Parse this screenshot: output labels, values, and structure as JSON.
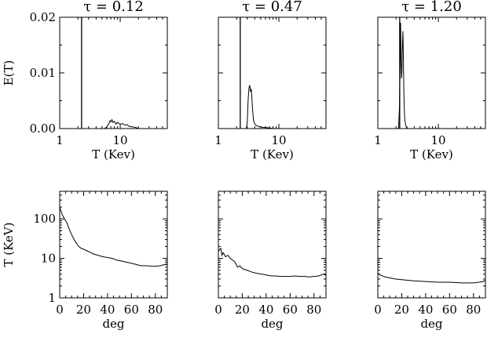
{
  "chart_data": [
    {
      "type": "line",
      "title": "τ = 0.12",
      "xlabel": "T (Kev)",
      "ylabel": "E(T)",
      "xscale": "log",
      "xlim": [
        1,
        60
      ],
      "ylim": [
        0,
        0.02
      ],
      "xticks": [
        1,
        10
      ],
      "xtick_labels": [
        "1",
        "10"
      ],
      "yticks": [
        0,
        0.01,
        0.02
      ],
      "ytick_labels": [
        "0.00",
        "0.01",
        "0.02"
      ],
      "vline": 2.3,
      "series": [
        {
          "x": [
            1,
            5.5,
            6.0,
            6.5,
            6.8,
            7.0,
            7.3,
            7.6,
            8.0,
            8.5,
            9.0,
            10,
            11,
            12,
            13,
            14,
            16,
            18,
            20,
            60
          ],
          "y": [
            0,
            0,
            0.0003,
            0.0009,
            0.0014,
            0.0012,
            0.0016,
            0.0011,
            0.0013,
            0.0008,
            0.0011,
            0.0008,
            0.0009,
            0.0006,
            0.0007,
            0.0004,
            0.0003,
            0.0002,
            0,
            0
          ]
        }
      ]
    },
    {
      "type": "line",
      "title": "τ = 0.47",
      "xlabel": "T (Kev)",
      "ylabel": "",
      "xscale": "log",
      "xlim": [
        1,
        60
      ],
      "ylim": [
        0,
        0.02
      ],
      "xticks": [
        1,
        10
      ],
      "xtick_labels": [
        "1",
        "10"
      ],
      "yticks": [
        0,
        0.01,
        0.02
      ],
      "ytick_labels": [
        "",
        "",
        ""
      ],
      "vline": 2.3,
      "series": [
        {
          "x": [
            1,
            2.9,
            3.0,
            3.1,
            3.2,
            3.3,
            3.4,
            3.5,
            3.6,
            3.7,
            3.8,
            4.0,
            4.3,
            4.6,
            5.0,
            5.5,
            6.0,
            7.0,
            8.0,
            60
          ],
          "y": [
            0,
            0,
            0.001,
            0.005,
            0.0073,
            0.0078,
            0.0066,
            0.0071,
            0.005,
            0.003,
            0.0015,
            0.0008,
            0.0005,
            0.0004,
            0.0003,
            0.0002,
            0.0002,
            0.0001,
            0,
            0
          ]
        }
      ]
    },
    {
      "type": "line",
      "title": "τ = 1.20",
      "xlabel": "T (Kev)",
      "ylabel": "",
      "xscale": "log",
      "xlim": [
        1,
        60
      ],
      "ylim": [
        0,
        0.02
      ],
      "xticks": [
        1,
        10
      ],
      "xtick_labels": [
        "1",
        "10"
      ],
      "yticks": [
        0,
        0.01,
        0.02
      ],
      "ytick_labels": [
        "",
        "",
        ""
      ],
      "vline": 2.3,
      "series": [
        {
          "x": [
            1,
            2.2,
            2.28,
            2.34,
            2.38,
            2.42,
            2.46,
            2.5,
            2.55,
            2.6,
            2.65,
            2.7,
            2.75,
            2.8,
            2.9,
            3.0,
            3.2,
            60
          ],
          "y": [
            0,
            0,
            0.004,
            0.012,
            0.019,
            0.013,
            0.009,
            0.01,
            0.015,
            0.0175,
            0.012,
            0.006,
            0.003,
            0.0015,
            0.0005,
            0.0002,
            0,
            0
          ]
        }
      ]
    },
    {
      "type": "line",
      "title": "",
      "xlabel": "deg",
      "ylabel": "T (KeV)",
      "yscale": "log",
      "xlim": [
        0,
        90
      ],
      "ylim": [
        1,
        500
      ],
      "xticks": [
        0,
        20,
        40,
        60,
        80
      ],
      "xtick_labels": [
        "0",
        "20",
        "40",
        "60",
        "80"
      ],
      "yticks": [
        1,
        10,
        100
      ],
      "ytick_labels": [
        "1",
        "10",
        "100"
      ],
      "series": [
        {
          "x": [
            0,
            2,
            4,
            6,
            8,
            10,
            12,
            14,
            16,
            18,
            20,
            24,
            28,
            32,
            36,
            40,
            44,
            48,
            52,
            56,
            60,
            64,
            68,
            72,
            76,
            80,
            84,
            88,
            90
          ],
          "y": [
            200,
            130,
            100,
            80,
            55,
            40,
            30,
            24,
            20,
            18,
            17,
            15,
            13,
            12,
            11,
            10.5,
            10,
            9,
            8.5,
            8,
            7.5,
            7,
            6.5,
            6.5,
            6.4,
            6.3,
            6.5,
            7,
            7.2
          ]
        }
      ]
    },
    {
      "type": "line",
      "title": "",
      "xlabel": "deg",
      "ylabel": "",
      "yscale": "log",
      "xlim": [
        0,
        90
      ],
      "ylim": [
        1,
        500
      ],
      "xticks": [
        0,
        20,
        40,
        60,
        80
      ],
      "xtick_labels": [
        "0",
        "20",
        "40",
        "60",
        "80"
      ],
      "yticks": [
        1,
        10,
        100
      ],
      "ytick_labels": [
        "",
        "",
        ""
      ],
      "series": [
        {
          "x": [
            0,
            2,
            3,
            4,
            6,
            8,
            10,
            12,
            14,
            16,
            18,
            20,
            24,
            28,
            32,
            36,
            40,
            44,
            48,
            52,
            56,
            60,
            64,
            68,
            72,
            76,
            80,
            84,
            88,
            90
          ],
          "y": [
            15,
            18,
            12,
            14,
            11,
            12,
            10,
            9,
            8,
            6,
            6.5,
            5.5,
            5,
            4.5,
            4.2,
            4,
            3.8,
            3.6,
            3.6,
            3.5,
            3.5,
            3.5,
            3.6,
            3.5,
            3.5,
            3.4,
            3.5,
            3.6,
            4,
            3.7
          ]
        }
      ]
    },
    {
      "type": "line",
      "title": "",
      "xlabel": "deg",
      "ylabel": "",
      "yscale": "log",
      "xlim": [
        0,
        90
      ],
      "ylim": [
        1,
        500
      ],
      "xticks": [
        0,
        20,
        40,
        60,
        80
      ],
      "xtick_labels": [
        "0",
        "20",
        "40",
        "60",
        "80"
      ],
      "yticks": [
        1,
        10,
        100
      ],
      "ytick_labels": [
        "",
        "",
        ""
      ],
      "series": [
        {
          "x": [
            0,
            2,
            4,
            6,
            10,
            15,
            20,
            30,
            40,
            50,
            60,
            70,
            80,
            85,
            88,
            90
          ],
          "y": [
            4.2,
            3.8,
            3.6,
            3.4,
            3.2,
            3.0,
            2.9,
            2.7,
            2.6,
            2.5,
            2.5,
            2.4,
            2.4,
            2.5,
            2.6,
            2.8
          ]
        }
      ]
    }
  ]
}
